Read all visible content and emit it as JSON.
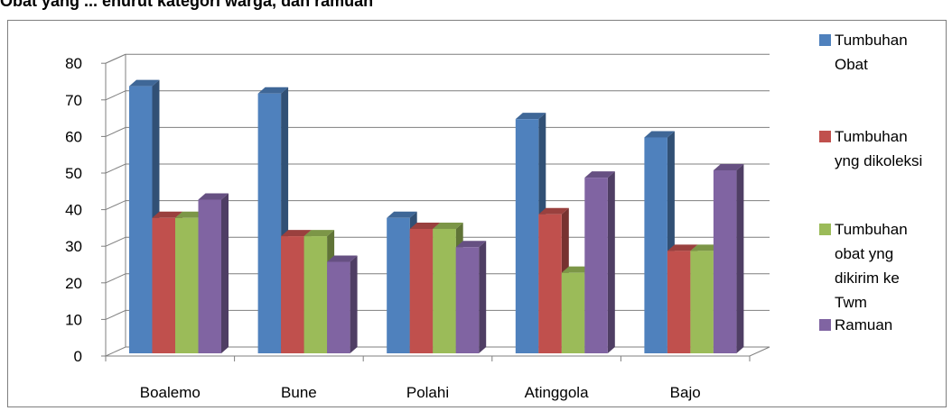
{
  "page": {
    "title": "Obat yang ... enurut kategori warga, dan ramuan"
  },
  "chart_data": {
    "type": "bar",
    "style": "3d-clustered-column",
    "categories": [
      "Boalemo",
      "Bune",
      "Polahi",
      "Atinggola",
      "Bajo"
    ],
    "series": [
      {
        "name": "Tumbuhan Obat",
        "color": "#4f81bd",
        "values": [
          73,
          71,
          37,
          64,
          59
        ]
      },
      {
        "name": "Tumbuhan yng dikoleksi",
        "color": "#c0504d",
        "values": [
          37,
          32,
          34,
          38,
          28
        ]
      },
      {
        "name": "Tumbuhan obat yng dikirim ke Twm",
        "color": "#9bbb59",
        "values": [
          37,
          32,
          34,
          22,
          28
        ]
      },
      {
        "name": "Ramuan",
        "color": "#8064a2",
        "values": [
          42,
          25,
          29,
          48,
          50
        ]
      }
    ],
    "yticks": [
      "0",
      "10",
      "20",
      "30",
      "40",
      "50",
      "60",
      "70",
      "80"
    ],
    "ylim": [
      0,
      80
    ],
    "grid": true,
    "legend_position": "right",
    "title": "",
    "xlabel": "",
    "ylabel": ""
  }
}
